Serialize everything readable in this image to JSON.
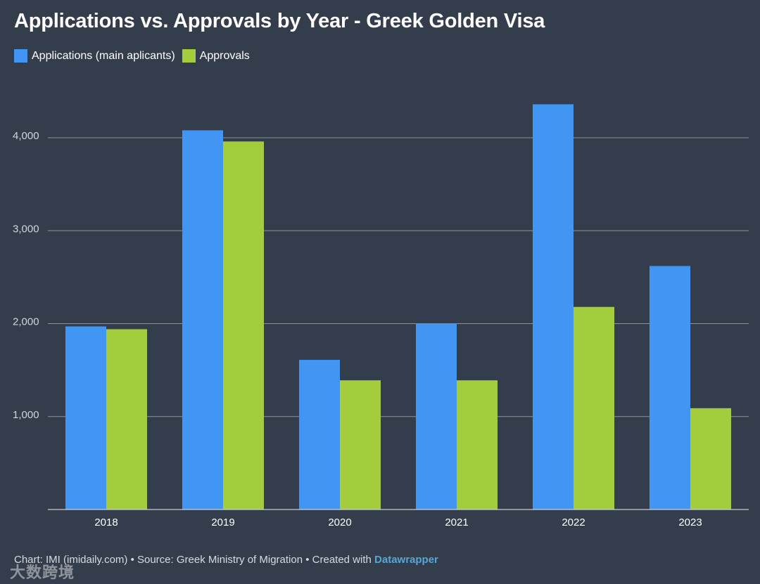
{
  "chart_data": {
    "type": "bar",
    "title": "Applications vs. Approvals by Year - Greek Golden Visa",
    "categories": [
      "2018",
      "2019",
      "2020",
      "2021",
      "2022",
      "2023"
    ],
    "series": [
      {
        "name": "Applications (main aplicants)",
        "color": "#4196f4",
        "values": [
          1970,
          4080,
          1610,
          2000,
          4360,
          2620
        ]
      },
      {
        "name": "Approvals",
        "color": "#a3cd3c",
        "values": [
          1940,
          3960,
          1390,
          1390,
          2180,
          1090
        ]
      }
    ],
    "ylim": [
      0,
      4000
    ],
    "yticks": [
      1000,
      2000,
      3000,
      4000
    ],
    "ytick_labels": [
      "1,000",
      "2,000",
      "3,000",
      "4,000"
    ],
    "xlabel": "",
    "ylabel": "",
    "grid": true,
    "legend": "top-left"
  },
  "footer": {
    "prefix": "Chart: IMI (imidaily.com) • Source: Greek Ministry of Migration • Created with ",
    "brand": "Datawrapper"
  },
  "watermark": "大数跨境"
}
